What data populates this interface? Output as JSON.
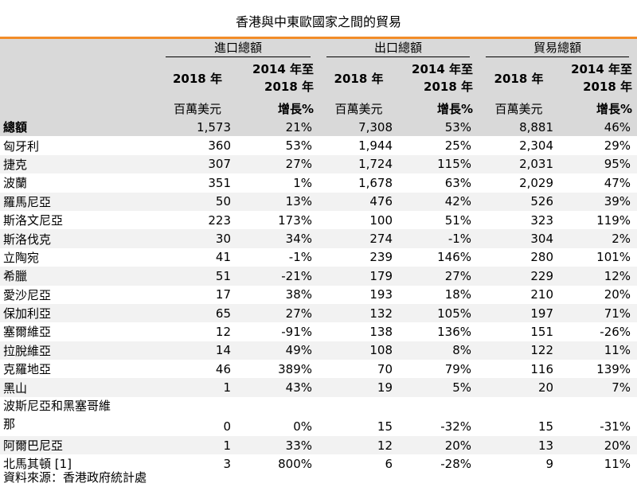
{
  "title": "香港與中東歐國家之間的貿易",
  "header": {
    "groups": [
      "進口總額",
      "出口總額",
      "貿易總額"
    ],
    "year_label": "2018 年",
    "growth_label_line1": "2014 年至",
    "growth_label_line2": "2018 年",
    "unit_value": "百萬美元",
    "unit_growth": "增長%"
  },
  "rows": [
    {
      "name": "總額",
      "v": [
        "1,573",
        "21%",
        "7,308",
        "53%",
        "8,881",
        "46%"
      ]
    },
    {
      "name": "匈牙利",
      "v": [
        "360",
        "53%",
        "1,944",
        "25%",
        "2,304",
        "29%"
      ]
    },
    {
      "name": "捷克",
      "v": [
        "307",
        "27%",
        "1,724",
        "115%",
        "2,031",
        "95%"
      ]
    },
    {
      "name": "波蘭",
      "v": [
        "351",
        "1%",
        "1,678",
        "63%",
        "2,029",
        "47%"
      ]
    },
    {
      "name": "羅馬尼亞",
      "v": [
        "50",
        "13%",
        "476",
        "42%",
        "526",
        "39%"
      ]
    },
    {
      "name": "斯洛文尼亞",
      "v": [
        "223",
        "173%",
        "100",
        "51%",
        "323",
        "119%"
      ]
    },
    {
      "name": "斯洛伐克",
      "v": [
        "30",
        "34%",
        "274",
        "-1%",
        "304",
        "2%"
      ]
    },
    {
      "name": "立陶宛",
      "v": [
        "41",
        "-1%",
        "239",
        "146%",
        "280",
        "101%"
      ]
    },
    {
      "name": "希臘",
      "v": [
        "51",
        "-21%",
        "179",
        "27%",
        "229",
        "12%"
      ]
    },
    {
      "name": "愛沙尼亞",
      "v": [
        "17",
        "38%",
        "193",
        "18%",
        "210",
        "20%"
      ]
    },
    {
      "name": "保加利亞",
      "v": [
        "65",
        "27%",
        "132",
        "105%",
        "197",
        "71%"
      ]
    },
    {
      "name": "塞爾維亞",
      "v": [
        "12",
        "-91%",
        "138",
        "136%",
        "151",
        "-26%"
      ]
    },
    {
      "name": "拉脫維亞",
      "v": [
        "14",
        "49%",
        "108",
        "8%",
        "122",
        "11%"
      ]
    },
    {
      "name": "克羅地亞",
      "v": [
        "46",
        "389%",
        "70",
        "79%",
        "116",
        "139%"
      ]
    },
    {
      "name": "黑山",
      "v": [
        "1",
        "43%",
        "19",
        "5%",
        "20",
        "7%"
      ]
    },
    {
      "name": "波斯尼亞和黑塞哥維那",
      "v": [
        "0",
        "0%",
        "15",
        "-32%",
        "15",
        "-31%"
      ]
    },
    {
      "name": "阿爾巴尼亞",
      "v": [
        "1",
        "33%",
        "12",
        "20%",
        "13",
        "20%"
      ]
    },
    {
      "name": "北馬其頓 [1]",
      "v": [
        "3",
        "800%",
        "6",
        "-28%",
        "9",
        "11%"
      ]
    }
  ],
  "source": "資料來源：香港政府統計處"
}
